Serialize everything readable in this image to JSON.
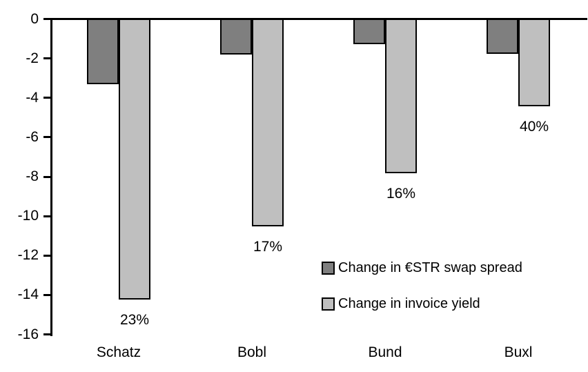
{
  "chart_data": {
    "type": "bar",
    "title": "",
    "categories": [
      "Schatz",
      "Bobl",
      "Bund",
      "Buxl"
    ],
    "series": [
      {
        "id": "swap-spread",
        "name": "Change in €STR swap spread",
        "color": "#7F7F7F",
        "values": [
          -3.3,
          -1.8,
          -1.25,
          -1.75
        ]
      },
      {
        "id": "invoice-yield",
        "name": "Change in invoice yield",
        "color": "#BFBFBF",
        "values": [
          -14.2,
          -10.5,
          -7.8,
          -4.4
        ]
      }
    ],
    "bar_labels": {
      "attached_to_series": "invoice-yield",
      "values": [
        "23%",
        "17%",
        "16%",
        "40%"
      ]
    },
    "y_axis": {
      "min": -16,
      "max": 0,
      "tick_step": 2,
      "ticks": [
        0,
        -2,
        -4,
        -6,
        -8,
        -10,
        -12,
        -14,
        -16
      ],
      "tick_labels": [
        "0",
        "-2",
        "-4",
        "-6",
        "-8",
        "-10",
        "-12",
        "-14",
        "-16"
      ]
    },
    "x_axis": {
      "labels": [
        "Schatz",
        "Bobl",
        "Bund",
        "Buxl"
      ]
    },
    "legend": {
      "position": "inside-center-right",
      "entries": [
        "Change in €STR swap spread",
        "Change in invoice yield"
      ]
    },
    "grid": false,
    "colors": {
      "axis": "#000000",
      "bar_border": "#000000",
      "text": "#000000",
      "background": "#FFFFFF"
    }
  }
}
